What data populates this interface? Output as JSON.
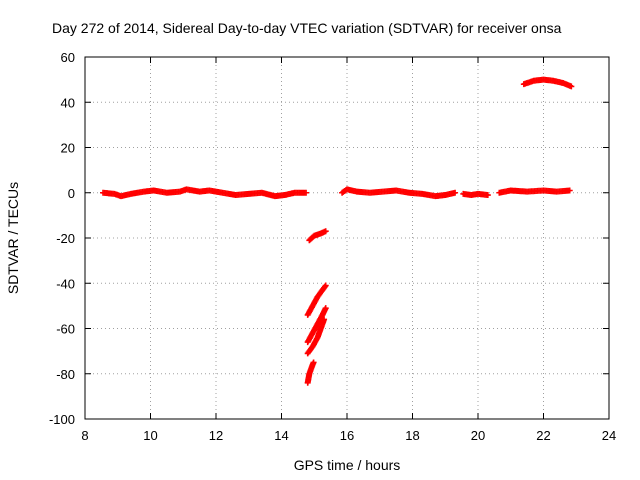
{
  "chart_data": {
    "type": "scatter",
    "title": "Day 272 of 2014, Sidereal Day-to-day VTEC variation (SDTVAR) for receiver onsa",
    "xlabel": "GPS time / hours",
    "ylabel": "SDTVAR / TECUs",
    "xlim": [
      8,
      24
    ],
    "ylim": [
      -100,
      60
    ],
    "xticks": [
      8,
      10,
      12,
      14,
      16,
      18,
      20,
      22,
      24
    ],
    "yticks": [
      -100,
      -80,
      -60,
      -40,
      -20,
      0,
      20,
      40,
      60
    ],
    "grid": true,
    "marker_color": "#ff0000",
    "series": [
      {
        "segments": [
          [
            [
              8.55,
              0
            ],
            [
              8.9,
              -0.5
            ],
            [
              9.1,
              -1.5
            ],
            [
              9.4,
              -0.5
            ],
            [
              9.8,
              0.5
            ],
            [
              10.1,
              1
            ],
            [
              10.5,
              0
            ],
            [
              10.9,
              0.5
            ],
            [
              11.1,
              1.5
            ],
            [
              11.5,
              0.5
            ],
            [
              11.8,
              1
            ],
            [
              12.2,
              0
            ],
            [
              12.6,
              -1
            ],
            [
              13.0,
              -0.5
            ],
            [
              13.4,
              0
            ],
            [
              13.8,
              -1.5
            ],
            [
              14.1,
              -1
            ],
            [
              14.4,
              0
            ],
            [
              14.75,
              0
            ]
          ],
          [
            [
              15.85,
              0
            ],
            [
              16.0,
              1.5
            ],
            [
              16.3,
              0.5
            ],
            [
              16.7,
              0
            ],
            [
              17.1,
              0.5
            ],
            [
              17.5,
              1
            ],
            [
              17.9,
              0
            ],
            [
              18.3,
              -0.5
            ],
            [
              18.7,
              -1.5
            ],
            [
              19.0,
              -1
            ],
            [
              19.3,
              0
            ]
          ],
          [
            [
              19.55,
              -0.5
            ],
            [
              19.8,
              -1
            ],
            [
              20.0,
              -0.5
            ],
            [
              20.3,
              -1
            ]
          ],
          [
            [
              20.65,
              0
            ],
            [
              21.0,
              1
            ],
            [
              21.5,
              0.5
            ],
            [
              22.0,
              1
            ],
            [
              22.4,
              0.5
            ],
            [
              22.8,
              1
            ]
          ],
          [
            [
              21.4,
              48
            ],
            [
              21.7,
              49.5
            ],
            [
              22.0,
              50
            ],
            [
              22.3,
              49.5
            ],
            [
              22.6,
              48.5
            ],
            [
              22.85,
              47
            ]
          ],
          [
            [
              14.85,
              -21
            ],
            [
              15.0,
              -19
            ],
            [
              15.2,
              -18
            ],
            [
              15.35,
              -17
            ]
          ],
          [
            [
              14.8,
              -54
            ],
            [
              14.95,
              -50
            ],
            [
              15.1,
              -46
            ],
            [
              15.3,
              -42
            ],
            [
              15.35,
              -41
            ]
          ],
          [
            [
              14.8,
              -66
            ],
            [
              14.95,
              -62
            ],
            [
              15.1,
              -58
            ],
            [
              15.25,
              -54
            ],
            [
              15.35,
              -51
            ]
          ],
          [
            [
              14.8,
              -71
            ],
            [
              14.95,
              -68
            ],
            [
              15.1,
              -64
            ],
            [
              15.2,
              -60
            ],
            [
              15.3,
              -56
            ]
          ],
          [
            [
              14.8,
              -84
            ],
            [
              14.85,
              -80
            ],
            [
              14.95,
              -76
            ],
            [
              14.98,
              -75
            ]
          ]
        ]
      }
    ]
  }
}
